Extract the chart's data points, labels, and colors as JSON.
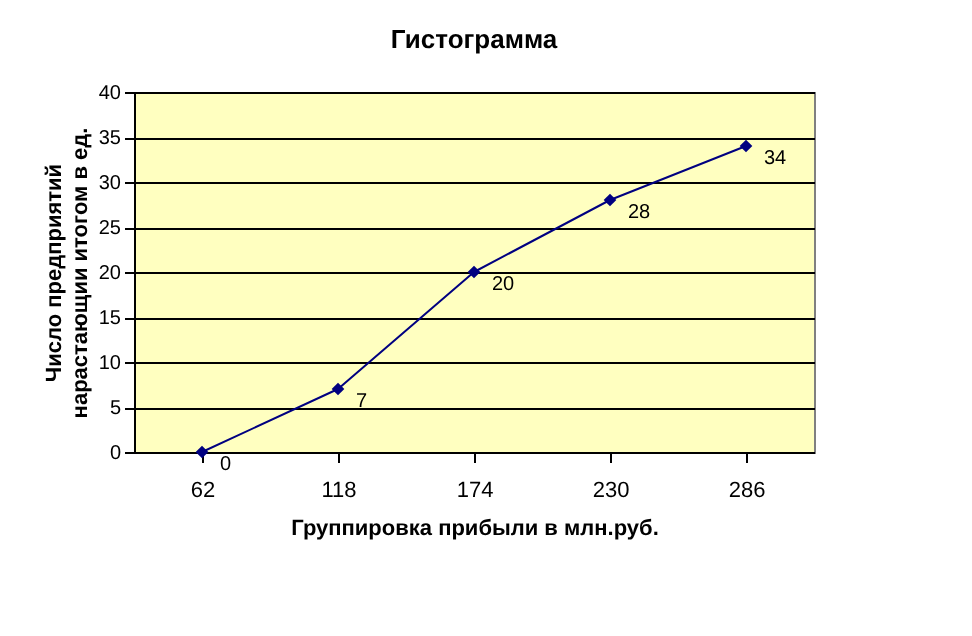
{
  "chart_data": {
    "type": "line",
    "title": "Гистограмма",
    "xlabel": "Группировка прибыли в млн.руб.",
    "ylabel": "Число предприятий\nнарастающии итогом в ед.",
    "categories": [
      "62",
      "118",
      "174",
      "230",
      "286"
    ],
    "series": [
      {
        "color": "#000080",
        "values": [
          0,
          7,
          20,
          28,
          34
        ]
      }
    ],
    "ylim": [
      0,
      40
    ],
    "yticks": [
      0,
      5,
      10,
      15,
      20,
      25,
      30,
      35,
      40
    ],
    "grid": "y",
    "legend": false,
    "marker": "diamond",
    "line_style": "solid",
    "data_labels": true
  }
}
